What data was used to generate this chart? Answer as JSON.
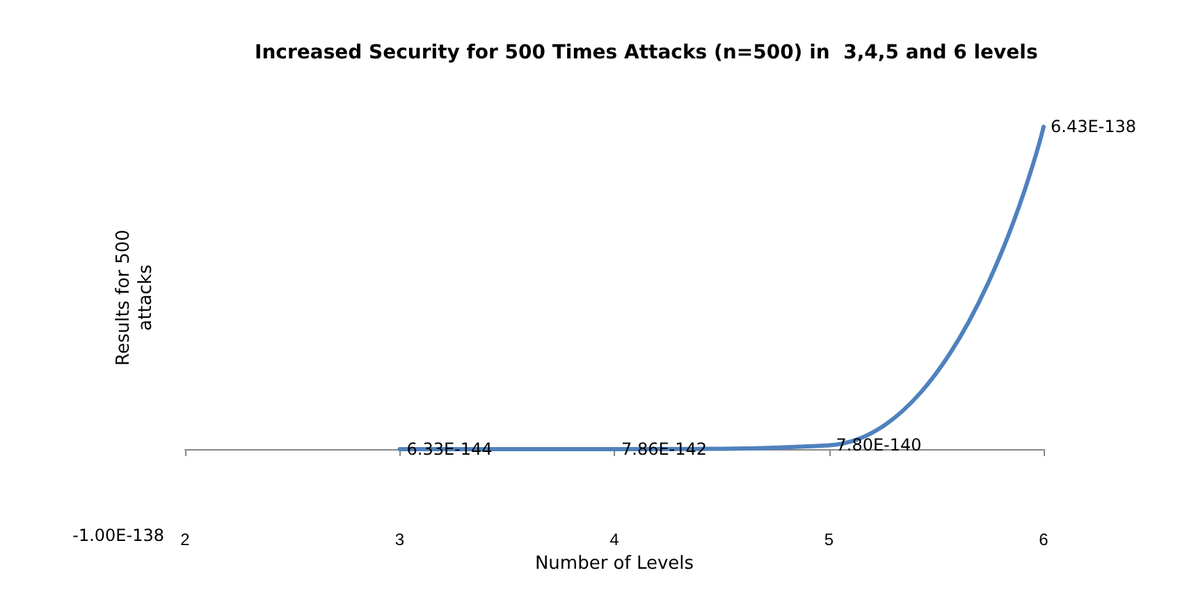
{
  "chart_data": {
    "type": "line",
    "title": "Increased Security for 500 Times Attacks (n=500) in  3,4,5 and 6 levels",
    "xlabel": "Number of Levels",
    "ylabel": "Results for 500\nattacks",
    "x": [
      3,
      4,
      5,
      6
    ],
    "series": [
      {
        "color": "#4f81bd",
        "values": [
          6.33e-144,
          7.86e-142,
          7.8e-140,
          6.43e-138
        ],
        "value_labels": [
          "6.33E-144",
          "7.86E-142",
          "7.80E-140",
          "6.43E-138"
        ]
      }
    ],
    "xlim": [
      2,
      6
    ],
    "xticks": [
      2,
      3,
      4,
      5,
      6
    ],
    "annotations": [
      "-1.00E-138"
    ],
    "marker": "none",
    "line_style": "solid"
  }
}
